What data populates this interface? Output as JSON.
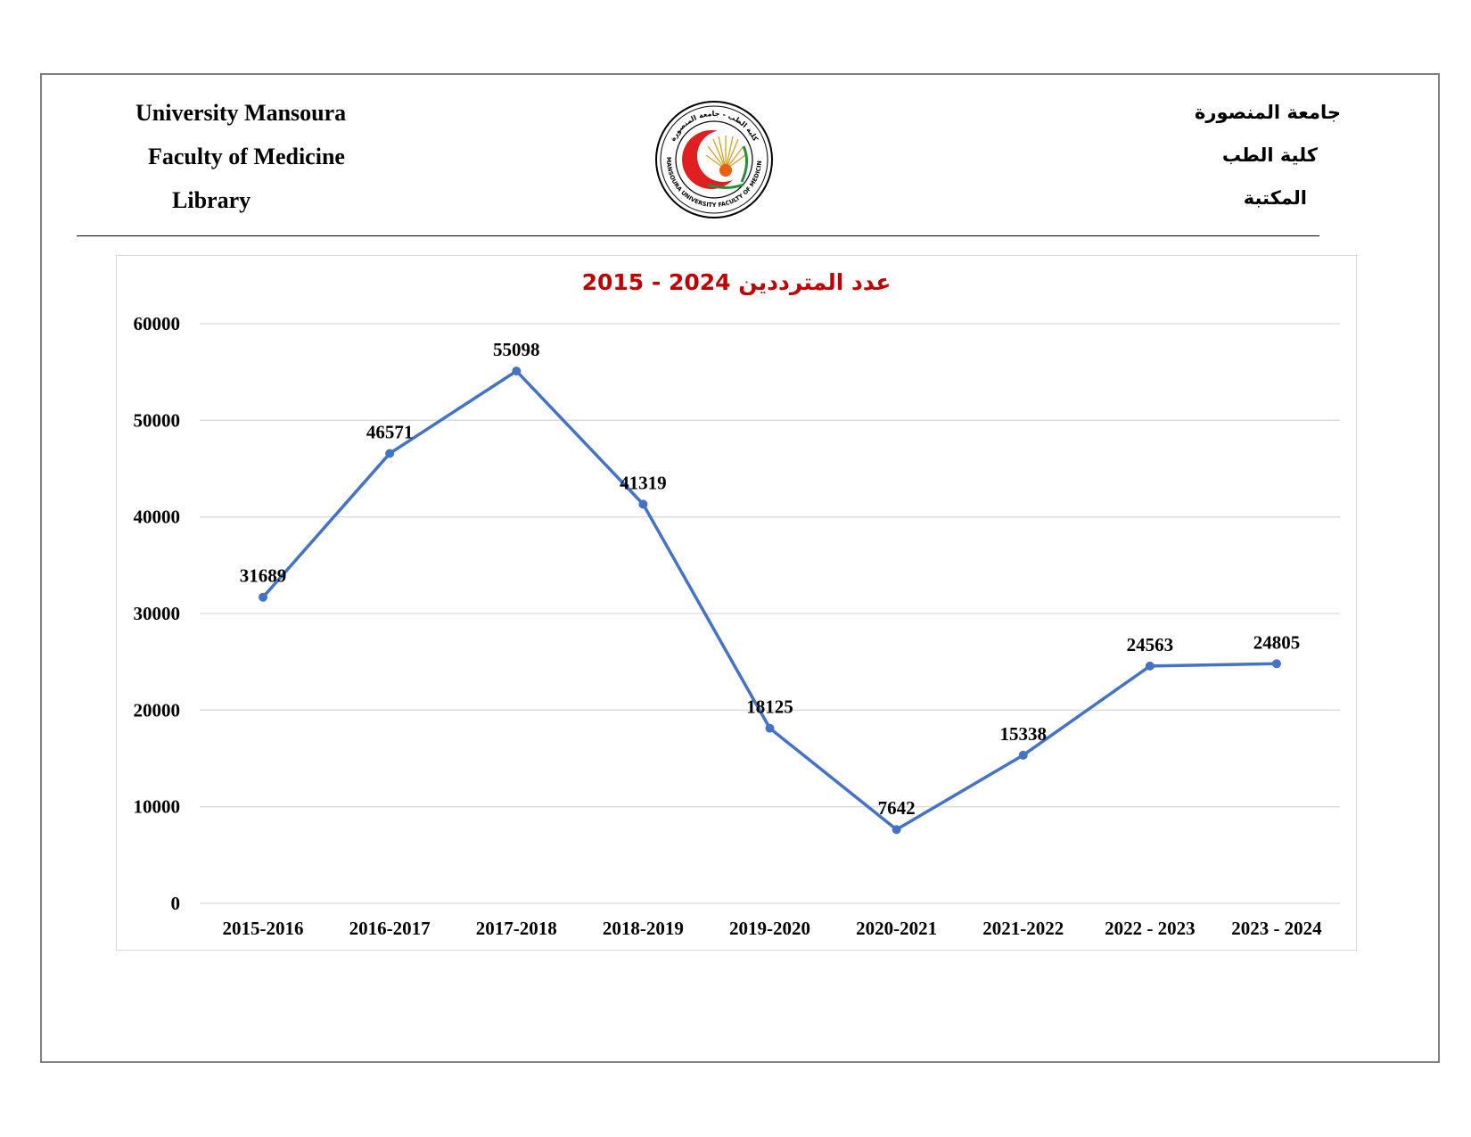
{
  "header": {
    "en_line1": "University Mansoura",
    "en_line2": "Faculty of Medicine",
    "en_line3": "Library",
    "ar_line1": "جامعة المنصورة",
    "ar_line2": "كلية الطب",
    "ar_line3": "المكتبة",
    "logo_text_top": "كلية الطب - جامعة المنصورة",
    "logo_text_bottom": "MANSOURA UNIVERSITY FACULTY OF MEDICINE"
  },
  "chart_data": {
    "type": "line",
    "title": "عدد المترددين 2024 - 2015",
    "categories": [
      "2015-2016",
      "2016-2017",
      "2017-2018",
      "2018-2019",
      "2019-2020",
      "2020-2021",
      "2021-2022",
      "2022 - 2023",
      "2023 - 2024"
    ],
    "series": [
      {
        "values": [
          31689,
          46571,
          55098,
          41319,
          18125,
          7642,
          15338,
          24563,
          24805
        ]
      }
    ],
    "ylim": [
      0,
      60000
    ],
    "yticks": [
      "0",
      "10000",
      "20000",
      "30000",
      "40000",
      "50000",
      "60000"
    ],
    "xlabel": "",
    "ylabel": "",
    "grid": true,
    "legend": "none",
    "data_labels": true,
    "line_color": "#4472c4",
    "title_color": "#c00000"
  }
}
